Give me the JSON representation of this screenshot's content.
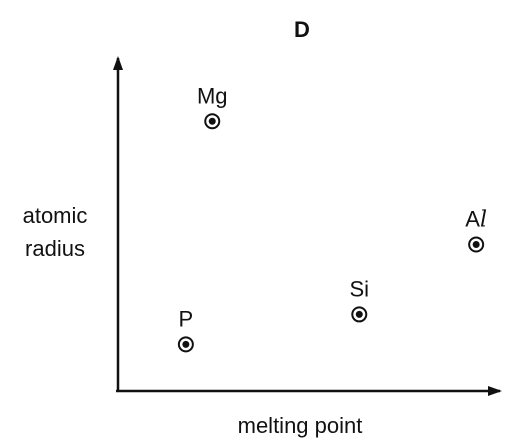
{
  "chart_data": {
    "type": "scatter",
    "title": "D",
    "xlabel": "melting point",
    "ylabel": [
      "atomic",
      "radius"
    ],
    "axes_numbered": false,
    "grid": false,
    "legend": "none",
    "colors": {
      "ink": "#111111",
      "background": "#ffffff"
    },
    "points": [
      {
        "label": "Mg",
        "x": 0.25,
        "y": 0.81
      },
      {
        "label": "Al",
        "x": 0.95,
        "y": 0.44
      },
      {
        "label": "Si",
        "x": 0.64,
        "y": 0.23
      },
      {
        "label": "P",
        "x": 0.18,
        "y": 0.14
      }
    ]
  }
}
